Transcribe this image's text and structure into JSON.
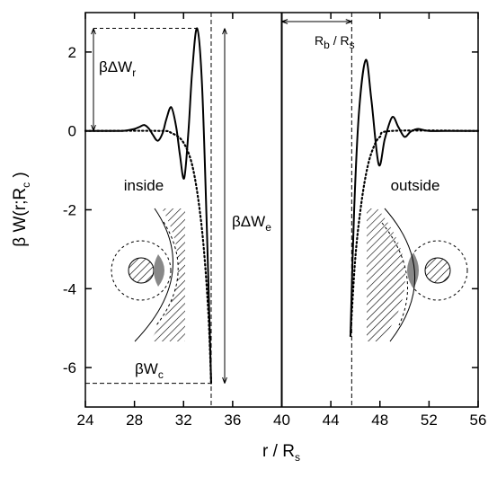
{
  "chart_data": {
    "type": "line",
    "xlabel": {
      "text": "r / R",
      "sub": "s"
    },
    "ylabel": {
      "text": "β W(r;R",
      "sub": "c",
      "tail": " )"
    },
    "xlim": [
      24,
      56
    ],
    "xticks": [
      24,
      28,
      32,
      36,
      40,
      44,
      48,
      52,
      56
    ],
    "ylim": [
      -7,
      3
    ],
    "yticks": [
      -6,
      -4,
      -2,
      0,
      2
    ],
    "series": [
      {
        "color": "#000000",
        "style": "solid",
        "x": [
          24,
          26,
          27,
          27.5,
          28,
          28.4,
          28.8,
          29.2,
          29.5,
          29.9,
          30.3,
          30.6,
          31.0,
          31.4,
          31.7,
          32.05,
          32.4,
          32.7,
          33.1,
          33.5,
          33.9,
          34.25,
          40,
          45.6,
          45.9,
          46.3,
          46.85,
          47.3,
          47.9,
          48.4,
          49.0,
          49.5,
          50.0,
          50.5,
          51.1,
          52,
          54,
          56
        ],
        "values": [
          0,
          0,
          0,
          0.02,
          0.05,
          0.1,
          0.15,
          0.05,
          -0.1,
          -0.25,
          -0.05,
          0.3,
          0.6,
          0.1,
          -0.6,
          -1.2,
          0,
          1.5,
          2.6,
          1.2,
          -2.5,
          -6.4,
          null,
          -5.2,
          -2,
          0.5,
          1.8,
          0.8,
          -0.85,
          -0.2,
          0.35,
          0.1,
          -0.15,
          -0.02,
          0.05,
          0,
          0,
          0
        ]
      },
      {
        "color": "#000000",
        "style": "dotted",
        "x": [
          24,
          30,
          31,
          32,
          32.8,
          33.5,
          34.0,
          34.25,
          40,
          45.6,
          46,
          46.5,
          47,
          47.5,
          48,
          49,
          56
        ],
        "values": [
          0,
          0,
          -0.05,
          -0.3,
          -1,
          -2.5,
          -4.5,
          -6.4,
          null,
          -5.2,
          -3.2,
          -1.8,
          -0.9,
          -0.4,
          -0.15,
          0,
          0
        ]
      }
    ],
    "vlines": [
      {
        "x": 34.25,
        "style": "dashed"
      },
      {
        "x": 40,
        "style": "solid"
      },
      {
        "x": 45.7,
        "style": "dashed"
      }
    ],
    "annotations": {
      "dwr": {
        "text": "βΔW",
        "sub": "r"
      },
      "dwe": {
        "text": "βΔW",
        "sub": "e"
      },
      "wc": {
        "text": "βW",
        "sub": "c"
      },
      "rb": {
        "text": "R",
        "sub": "b",
        "tail": " / R",
        "sub2": "s"
      },
      "inside": "inside",
      "outside": "outside"
    }
  }
}
